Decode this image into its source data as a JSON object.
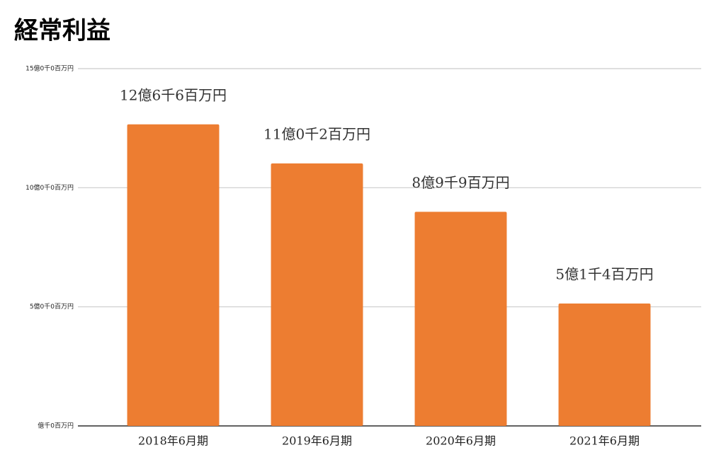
{
  "chart_data": {
    "type": "bar",
    "title": "経常利益",
    "categories": [
      "2018年6月期",
      "2019年6月期",
      "2020年6月期",
      "2021年6月期"
    ],
    "values": [
      1266000000,
      1102000000,
      899000000,
      514000000
    ],
    "value_labels": [
      "12億6千6百万円",
      "11億0千2百万円",
      "8億9千9百万円",
      "5億1千4百万円"
    ],
    "color": "#ed7d31",
    "ylim": [
      0,
      1500000000
    ],
    "yticks": [
      {
        "value": 0,
        "label": "億千0百万円"
      },
      {
        "value": 500000000,
        "label": "5億0千0百万円"
      },
      {
        "value": 1000000000,
        "label": "10億0千0百万円"
      },
      {
        "value": 1500000000,
        "label": "15億0千0百万円"
      }
    ],
    "grid": true
  }
}
